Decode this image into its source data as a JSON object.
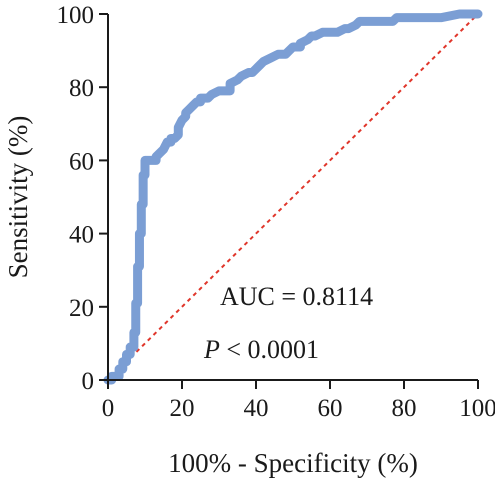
{
  "chart_data": {
    "type": "line",
    "title": "",
    "xlabel": "100% - Specificity (%)",
    "ylabel": "Sensitivity (%)",
    "xlim": [
      0,
      100
    ],
    "ylim": [
      0,
      100
    ],
    "xticks": [
      "0",
      "20",
      "40",
      "60",
      "80",
      "100"
    ],
    "yticks": [
      "0",
      "20",
      "40",
      "60",
      "80",
      "100"
    ],
    "grid": false,
    "legend": "none",
    "annotations": {
      "auc": "AUC = 0.8114",
      "p_letter": "P",
      "p_rest": " < 0.0001"
    },
    "series": [
      {
        "color": "#7b9ed4",
        "style": "thick-step",
        "x": [
          0,
          1,
          1,
          3,
          3,
          4,
          4,
          5,
          5,
          6,
          6,
          7,
          7,
          7.5,
          7.5,
          8,
          8,
          8.5,
          8.5,
          9,
          9,
          9.5,
          9.5,
          10,
          10,
          11,
          12,
          13,
          13,
          14,
          15,
          16,
          17,
          17,
          18,
          19,
          19,
          20,
          21,
          21,
          22,
          23,
          24,
          25,
          25,
          27,
          28,
          30,
          31,
          33,
          33,
          35,
          36,
          38,
          39,
          40,
          41,
          42,
          44,
          46,
          48,
          49,
          50,
          52,
          52,
          54,
          55,
          56,
          58,
          60,
          62,
          64,
          65,
          67,
          68,
          70,
          72,
          75,
          77,
          78,
          79,
          80,
          85,
          90,
          95,
          100
        ],
        "y": [
          0,
          0,
          1,
          1,
          3,
          3,
          5,
          5,
          7,
          7,
          9,
          9,
          13,
          13,
          21,
          21,
          31,
          31,
          40,
          40,
          48,
          48,
          56,
          56,
          60,
          60,
          60,
          60,
          61,
          62,
          63,
          65,
          65,
          66,
          66,
          67,
          69,
          71,
          72,
          73,
          74,
          75,
          76,
          76,
          77,
          77,
          78,
          79,
          79,
          79,
          81,
          82,
          83,
          84,
          84,
          85,
          86,
          87,
          88,
          89,
          89,
          90,
          91,
          91,
          92,
          93,
          94,
          94,
          95,
          95,
          95,
          96,
          96,
          97,
          98,
          98,
          98,
          98,
          98,
          99,
          99,
          99,
          99,
          99,
          100,
          100
        ]
      },
      {
        "color": "#e0362b",
        "style": "dashed",
        "x": [
          0,
          100
        ],
        "y": [
          0,
          100
        ]
      }
    ]
  }
}
